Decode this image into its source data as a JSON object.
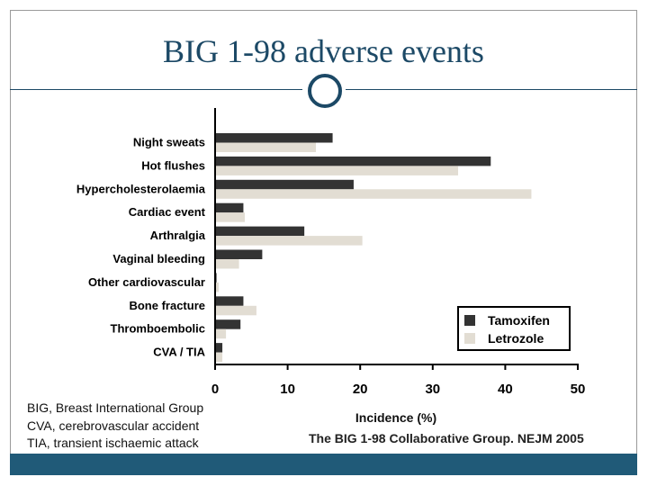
{
  "slide": {
    "title": "BIG 1-98 adverse events",
    "footnotes": [
      "BIG, Breast International Group",
      "CVA, cerebrovascular accident",
      "TIA, transient ischaemic attack"
    ],
    "citation": "The BIG 1-98 Collaborative Group. NEJM 2005"
  },
  "colors": {
    "title": "#1c4966",
    "footer_bar": "#205a78",
    "tamoxifen": "#333333",
    "letrozole": "#e2ddd3"
  },
  "chart_data": {
    "type": "bar",
    "orientation": "horizontal",
    "title": "",
    "xlabel": "Incidence (%)",
    "ylabel": "",
    "xlim": [
      0,
      50
    ],
    "xticks": [
      "0",
      "10",
      "20",
      "30",
      "40",
      "50"
    ],
    "grid": false,
    "legend_position": "bottom-right",
    "categories": [
      "Night sweats",
      "Hot flushes",
      "Hypercholesterolaemia",
      "Cardiac event",
      "Arthralgia",
      "Vaginal bleeding",
      "Other cardiovascular",
      "Bone fracture",
      "Thromboembolic",
      "CVA / TIA"
    ],
    "series": [
      {
        "name": "Tamoxifen",
        "color": "#333333",
        "values": [
          16.2,
          38.0,
          19.1,
          3.9,
          12.3,
          6.5,
          0.2,
          3.9,
          3.5,
          1.0
        ]
      },
      {
        "name": "Letrozole",
        "color": "#e2ddd3",
        "values": [
          13.9,
          33.5,
          43.6,
          4.1,
          20.3,
          3.3,
          0.5,
          5.7,
          1.5,
          1.0
        ]
      }
    ]
  }
}
